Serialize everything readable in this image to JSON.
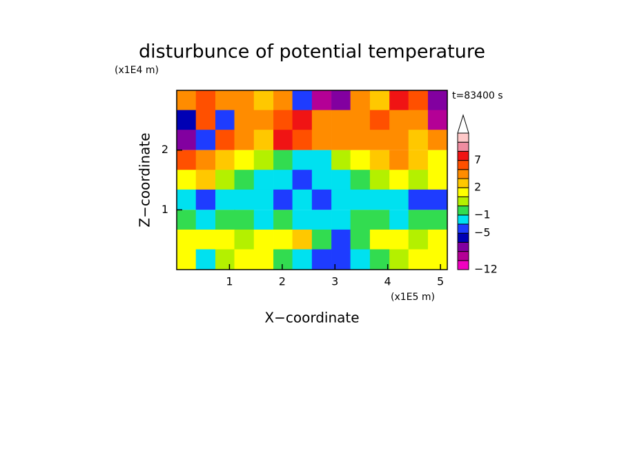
{
  "chart_data": {
    "type": "contour",
    "title": "disturbunce of potential temperature",
    "x_label": "X−coordinate",
    "y_label": "Z−coordinate",
    "x_unit": "(x1E5 m)",
    "y_unit": "(x1E4 m)",
    "annotation": "t=83400 s",
    "xlim": [
      0,
      5.13
    ],
    "ylim": [
      0,
      3
    ],
    "xticks": [
      1,
      2,
      3,
      4,
      5
    ],
    "yticks": [
      1,
      2
    ],
    "x": [
      0.18,
      0.55,
      0.92,
      1.28,
      1.65,
      2.02,
      2.38,
      2.75,
      3.12,
      3.48,
      3.85,
      4.22,
      4.58,
      4.95
    ],
    "y": [
      2.83,
      2.5,
      2.17,
      1.83,
      1.5,
      1.17,
      0.83,
      0.5,
      0.17
    ],
    "z": [
      [
        4,
        6,
        3,
        4,
        2,
        4,
        -5,
        -9,
        -7,
        3,
        2,
        7,
        5,
        -8
      ],
      [
        -6,
        5,
        -5,
        4,
        3,
        6,
        8,
        4,
        3,
        4,
        5,
        3,
        4,
        -9
      ],
      [
        -7,
        -5,
        5,
        3,
        2,
        8,
        6,
        4,
        3,
        4,
        4,
        3,
        2,
        3
      ],
      [
        5,
        4,
        2,
        1,
        0,
        -1,
        -2,
        -3,
        0,
        1,
        2,
        3,
        2,
        1
      ],
      [
        1,
        2,
        0,
        -1,
        -2,
        -2,
        -4,
        -3,
        -2,
        -1,
        0,
        1,
        0,
        1
      ],
      [
        -2,
        -4,
        -2,
        -2,
        -3,
        -4,
        -2,
        -4,
        -3,
        -2,
        -2,
        -3,
        -5,
        -5
      ],
      [
        -1,
        -2,
        -1,
        -1,
        -2,
        -1,
        -2,
        -3,
        -2,
        -1,
        -1,
        -2,
        -1,
        -1
      ],
      [
        1,
        1.5,
        1,
        0.5,
        1,
        1,
        2,
        -1,
        -5,
        -1,
        1,
        1,
        0.5,
        1
      ],
      [
        1,
        -2,
        0,
        1,
        1,
        -1,
        -2,
        -5,
        -4,
        -2,
        -1,
        0,
        1,
        1
      ]
    ],
    "colorbar": {
      "levels": [
        -12,
        -10,
        -8,
        -6,
        -5,
        -3,
        -1,
        0,
        1,
        2,
        3,
        5,
        7,
        9,
        11,
        13
      ],
      "colors": [
        "#f000c0",
        "#b40096",
        "#8200a0",
        "#0000b4",
        "#1e3cff",
        "#00e1f0",
        "#32dc50",
        "#b4f000",
        "#ffff00",
        "#ffc800",
        "#ff8c00",
        "#ff5000",
        "#f01414",
        "#f08ca0",
        "#ffc8c8"
      ],
      "ticks": [
        {
          "value": -12,
          "label": "−12"
        },
        {
          "value": -5,
          "label": "−5"
        },
        {
          "value": -1,
          "label": "−1"
        },
        2,
        7
      ]
    }
  }
}
